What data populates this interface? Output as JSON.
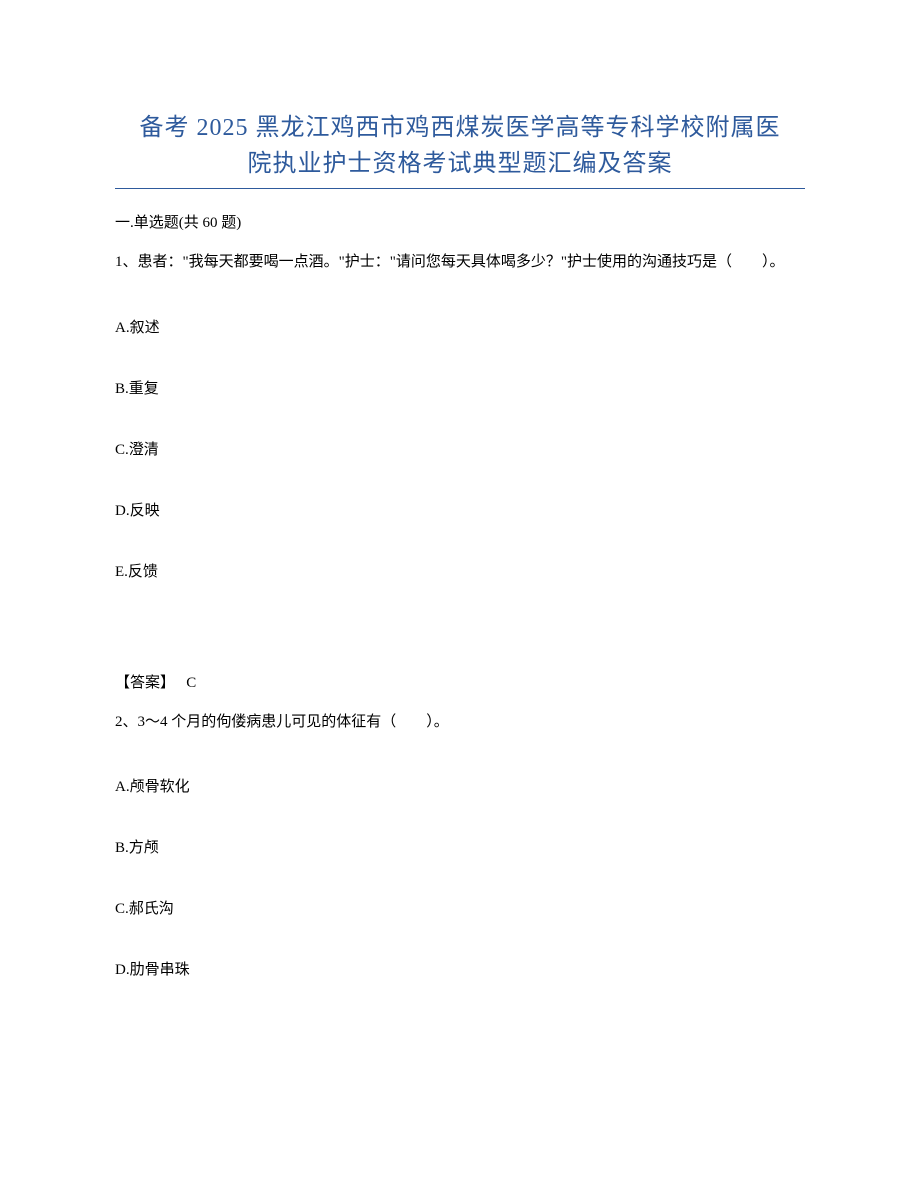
{
  "title_line1": "备考 2025 黑龙江鸡西市鸡西煤炭医学高等专科学校附属医",
  "title_line2": "院执业护士资格考试典型题汇编及答案",
  "section_header": "一.单选题(共 60 题)",
  "question1": {
    "text": "1、患者：\"我每天都要喝一点酒。\"护士：\"请问您每天具体喝多少？\"护士使用的沟通技巧是（　　）。",
    "options": {
      "A": "A.叙述",
      "B": "B.重复",
      "C": "C.澄清",
      "D": "D.反映",
      "E": "E.反馈"
    },
    "answer_label": "【答案】",
    "answer_value": "C"
  },
  "question2": {
    "text": "2、3～4 个月的佝偻病患儿可见的体征有（　　）。",
    "options": {
      "A": "A.颅骨软化",
      "B": "B.方颅",
      "C": "C.郝氏沟",
      "D": "D.肋骨串珠"
    }
  },
  "colors": {
    "title_color": "#2e5a9c",
    "text_color": "#000000",
    "background_color": "#ffffff"
  },
  "typography": {
    "title_fontsize": 24,
    "body_fontsize": 15,
    "font_family": "SimSun"
  }
}
